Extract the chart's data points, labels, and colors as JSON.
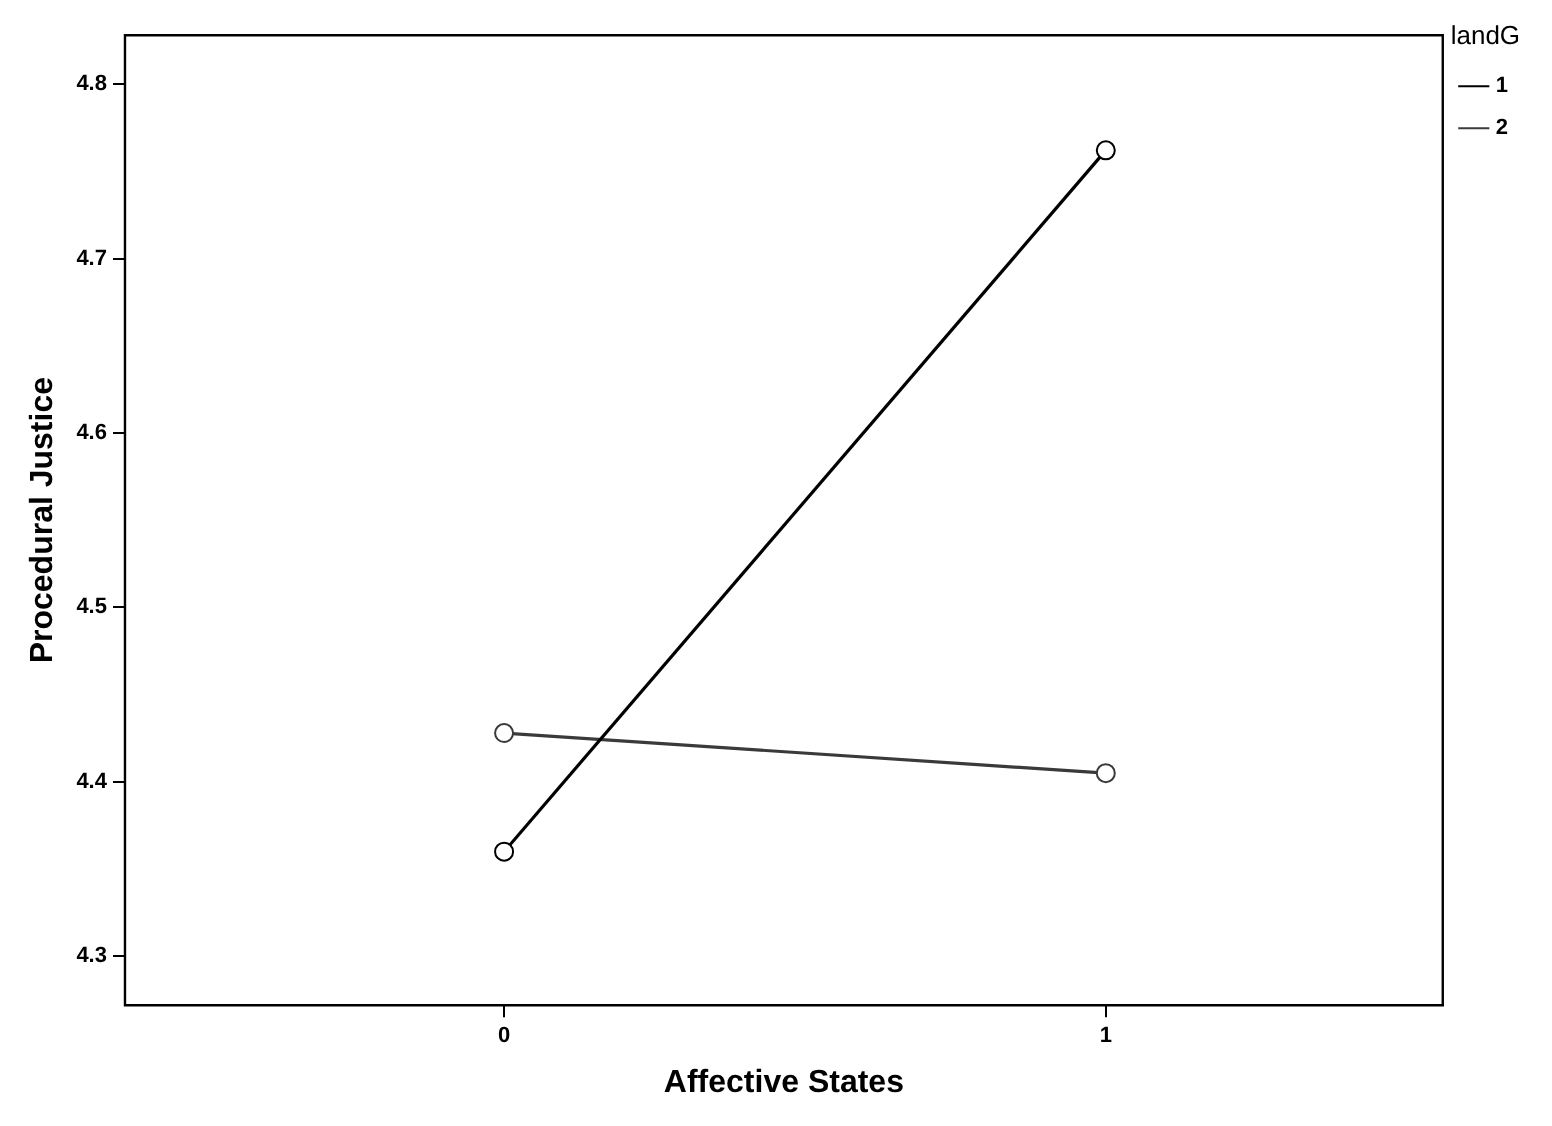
{
  "chart_data": {
    "type": "line",
    "xlabel": "Affective States",
    "ylabel": "Procedural Justice",
    "legend_title": "landG",
    "x": [
      0,
      1
    ],
    "series": [
      {
        "name": "1",
        "color": "#000000",
        "values": [
          4.36,
          4.762
        ]
      },
      {
        "name": "2",
        "color": "#3a3a3a",
        "values": [
          4.428,
          4.405
        ]
      }
    ],
    "xlim": [
      -0.63,
      1.56
    ],
    "xticks": [
      0,
      1
    ],
    "ylim": [
      4.272,
      4.828
    ],
    "yticks": [
      4.3,
      4.4,
      4.5,
      4.6,
      4.7,
      4.8
    ],
    "grid": false,
    "legend": "top right",
    "marker": "circle",
    "line_style": "solid"
  }
}
